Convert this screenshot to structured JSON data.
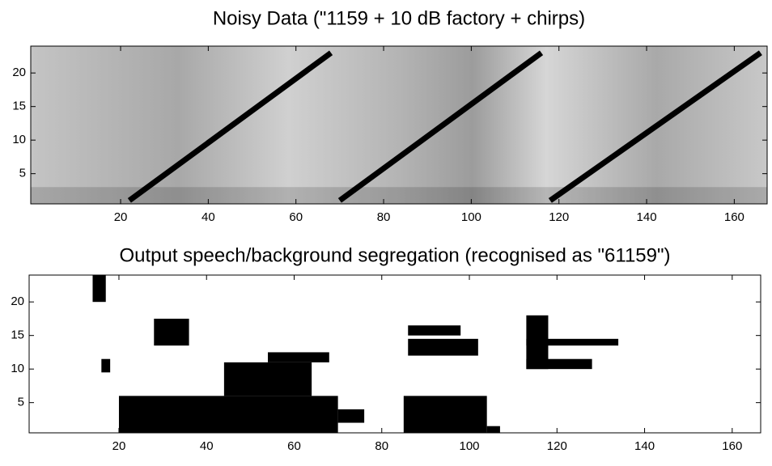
{
  "chart_data": [
    {
      "type": "image",
      "title": "Noisy Data (\"1159 + 10 dB factory + chirps)",
      "xlim": [
        -0.5,
        167.5
      ],
      "ylim": [
        0.5,
        24
      ],
      "xticks": [
        20,
        40,
        60,
        80,
        100,
        120,
        140,
        160
      ],
      "yticks": [
        5,
        10,
        15,
        20
      ],
      "series": [
        {
          "color": "#000000",
          "x": [
            22,
            68
          ],
          "values": [
            1,
            23
          ]
        },
        {
          "color": "#000000",
          "x": [
            70,
            116
          ],
          "values": [
            1,
            23
          ]
        },
        {
          "color": "#000000",
          "x": [
            118,
            166
          ],
          "values": [
            1,
            23
          ]
        }
      ]
    },
    {
      "type": "mask",
      "title": "Output speech/background segregation (recognised as \"61159\")",
      "xlim": [
        -0.5,
        166.5
      ],
      "ylim": [
        0.5,
        24
      ],
      "xticks": [
        20,
        40,
        60,
        80,
        100,
        120,
        140,
        160
      ],
      "yticks": [
        5,
        10,
        15,
        20
      ],
      "color": "#000000",
      "regions": [
        {
          "x": [
            20,
            70
          ],
          "y": [
            0.5,
            6
          ]
        },
        {
          "x": [
            44,
            64
          ],
          "y": [
            6,
            11
          ]
        },
        {
          "x": [
            54,
            68
          ],
          "y": [
            11,
            12.5
          ]
        },
        {
          "x": [
            28,
            36
          ],
          "y": [
            13.5,
            17.5
          ]
        },
        {
          "x": [
            70,
            76
          ],
          "y": [
            2,
            4
          ]
        },
        {
          "x": [
            85,
            104
          ],
          "y": [
            0.5,
            6
          ]
        },
        {
          "x": [
            86,
            102
          ],
          "y": [
            12,
            14.5
          ]
        },
        {
          "x": [
            86,
            98
          ],
          "y": [
            15,
            16.5
          ]
        },
        {
          "x": [
            113,
            118
          ],
          "y": [
            10,
            18
          ]
        },
        {
          "x": [
            113,
            134
          ],
          "y": [
            13.5,
            14.5
          ]
        },
        {
          "x": [
            113,
            128
          ],
          "y": [
            10,
            11.5
          ]
        },
        {
          "x": [
            14,
            17
          ],
          "y": [
            20,
            24
          ]
        },
        {
          "x": [
            16,
            18
          ],
          "y": [
            9.5,
            11.5
          ]
        },
        {
          "x": [
            104,
            107
          ],
          "y": [
            0.5,
            1.5
          ]
        }
      ]
    }
  ]
}
